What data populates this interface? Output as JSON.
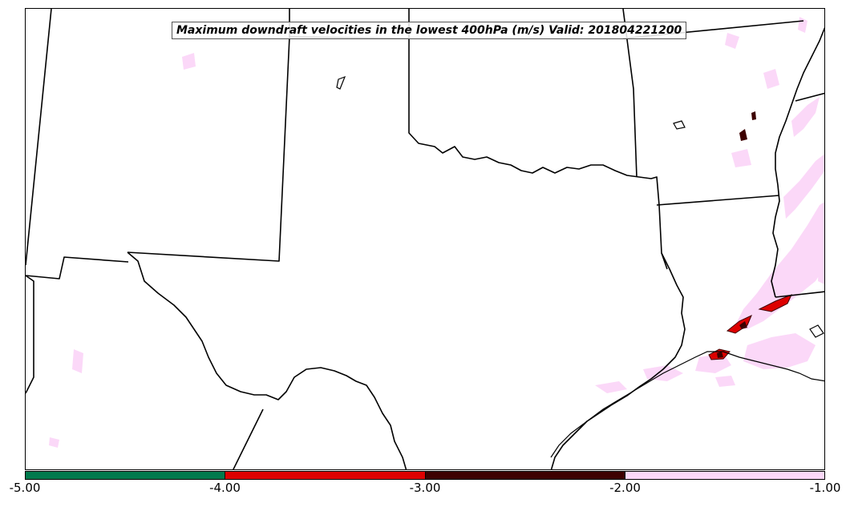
{
  "title": "Maximum downdraft velocities in the lowest 400hPa (m/s) Valid: 201804221200",
  "colorbar": {
    "segments": [
      {
        "from": -5.0,
        "to": -4.0,
        "color": "#007a4d"
      },
      {
        "from": -4.0,
        "to": -3.0,
        "color": "#dd0000"
      },
      {
        "from": -3.0,
        "to": -2.0,
        "color": "#3d0000"
      },
      {
        "from": -2.0,
        "to": -1.0,
        "color": "#fbd8f8"
      }
    ],
    "ticks": [
      "-5.00",
      "-4.00",
      "-3.00",
      "-2.00",
      "-1.00"
    ]
  },
  "colors": {
    "border": "#000000",
    "weak": "#fbd8f8",
    "strong": "#dd0000",
    "stronger": "#3d0000"
  }
}
